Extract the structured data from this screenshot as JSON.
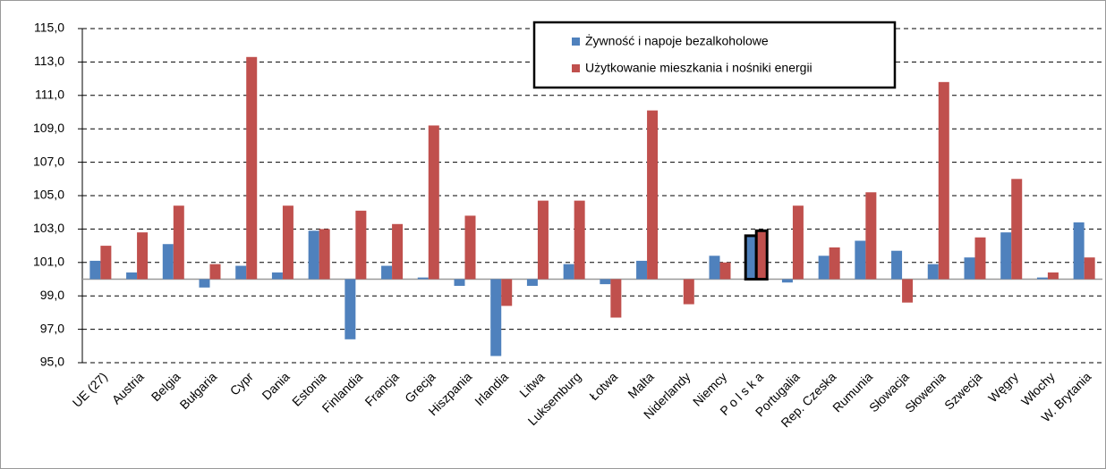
{
  "chart_data": {
    "type": "bar",
    "categories": [
      "UE (27)",
      "Austria",
      "Belgia",
      "Bułgaria",
      "Cypr",
      "Dania",
      "Estonia",
      "Finlandia",
      "Francja",
      "Grecja",
      "Hiszpania",
      "Irlandia",
      "Litwa",
      "Luksemburg",
      "Łotwa",
      "Malta",
      "Niderlandy",
      "Niemcy",
      "P o l s k a",
      "Portugalia",
      "Rep. Czeska",
      "Rumunia",
      "Słowacja",
      "Słowenia",
      "Szwecja",
      "Węgry",
      "Włochy",
      "W. Brytania"
    ],
    "series": [
      {
        "name": "Żywność i napoje bezalkoholowe",
        "color": "#4f81bd",
        "values": [
          101.1,
          100.4,
          102.1,
          99.5,
          100.8,
          100.4,
          102.9,
          96.4,
          100.8,
          100.1,
          99.6,
          95.4,
          99.6,
          100.9,
          99.7,
          101.1,
          100.0,
          101.4,
          102.6,
          99.8,
          101.4,
          102.3,
          101.7,
          100.9,
          101.3,
          102.8,
          100.1,
          103.4
        ]
      },
      {
        "name": "Użytkowanie mieszkania i nośniki energii",
        "color": "#c0504d",
        "values": [
          102.0,
          102.8,
          104.4,
          100.9,
          113.3,
          104.4,
          103.0,
          104.1,
          103.3,
          109.2,
          103.8,
          98.4,
          104.7,
          104.7,
          97.7,
          110.1,
          98.5,
          101.0,
          102.9,
          104.4,
          101.9,
          105.2,
          98.6,
          111.8,
          102.5,
          106.0,
          100.4,
          101.3
        ]
      }
    ],
    "baseline": 100,
    "highlight": "P o l s k a",
    "ylim": [
      95,
      115
    ],
    "yticks": [
      {
        "value": 95,
        "label": "95,0"
      },
      {
        "value": 97,
        "label": "97,0"
      },
      {
        "value": 99,
        "label": "99,0"
      },
      {
        "value": 101,
        "label": "101,0"
      },
      {
        "value": 103,
        "label": "103,0"
      },
      {
        "value": 105,
        "label": "105,0"
      },
      {
        "value": 107,
        "label": "107,0"
      },
      {
        "value": 109,
        "label": "109,0"
      },
      {
        "value": 111,
        "label": "111,0"
      },
      {
        "value": 113,
        "label": "113,0"
      },
      {
        "value": 115,
        "label": "115,0"
      }
    ],
    "grid": true
  }
}
